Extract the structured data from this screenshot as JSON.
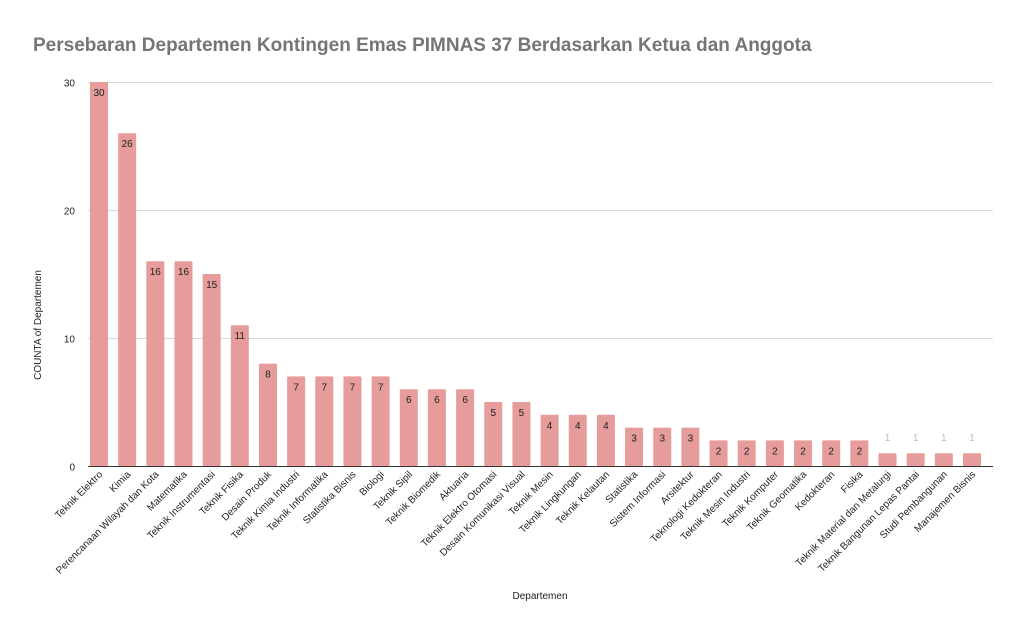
{
  "chart_data": {
    "type": "bar",
    "title": "Persebaran Departemen Kontingen Emas PIMNAS 37 Berdasarkan Ketua dan Anggota",
    "xlabel": "Departemen",
    "ylabel": "COUNTA of Departemen",
    "ylim": [
      0,
      30
    ],
    "yticks": [
      0,
      10,
      20,
      30
    ],
    "grid": true,
    "bar_color": "#e69c9a",
    "categories": [
      "Teknik Elektro",
      "Kimia",
      "Perencanaan Wilayah dan Kota",
      "Matematika",
      "Teknik Instrumentasi",
      "Teknik Fisika",
      "Desain Produk",
      "Teknik Kimia Industri",
      "Teknik Informatika",
      "Statistika Bisnis",
      "Biologi",
      "Teknik Sipil",
      "Teknik Biomedik",
      "Aktuaria",
      "Teknik Elektro Otomasi",
      "Desain Komunikasi Visual",
      "Teknik Mesin",
      "Teknik Lingkungan",
      "Teknik Kelautan",
      "Statistika",
      "Sistem Informasi",
      "Arsitektur",
      "Teknologi Kedokteran",
      "Teknik Mesin Industri",
      "Teknik Komputer",
      "Teknik Geomatika",
      "Kedokteran",
      "Fisika",
      "Teknik Material dan Metalurgi",
      "Teknik Bangunan Lepas Pantai",
      "Studi Pembangunan",
      "Manajemen Bisnis"
    ],
    "values": [
      30,
      26,
      16,
      16,
      15,
      11,
      8,
      7,
      7,
      7,
      7,
      6,
      6,
      6,
      5,
      5,
      4,
      4,
      4,
      3,
      3,
      3,
      2,
      2,
      2,
      2,
      2,
      2,
      1,
      1,
      1,
      1
    ]
  }
}
